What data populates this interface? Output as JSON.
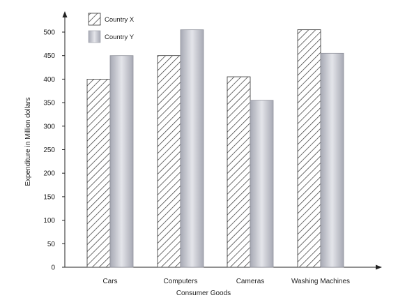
{
  "chart_data": {
    "type": "bar",
    "title": "",
    "xlabel": "Consumer Goods",
    "ylabel": "Expenditure in Million dollars",
    "ylim": [
      0,
      500
    ],
    "yticks": [
      "0",
      "50",
      "100",
      "150",
      "200",
      "250",
      "300",
      "350",
      "400",
      "450",
      "500"
    ],
    "categories": [
      "Cars",
      "Computers",
      "Cameras",
      "Washing Machines"
    ],
    "series": [
      {
        "name": "Country X",
        "values": [
          400,
          450,
          405,
          505
        ],
        "pattern": "diagonal-hatch",
        "color": "#333333"
      },
      {
        "name": "Country Y",
        "values": [
          450,
          505,
          355,
          455
        ],
        "pattern": "gray-gradient",
        "color": "#b8bac4"
      }
    ],
    "grid": false,
    "legend_position": "top-left"
  }
}
